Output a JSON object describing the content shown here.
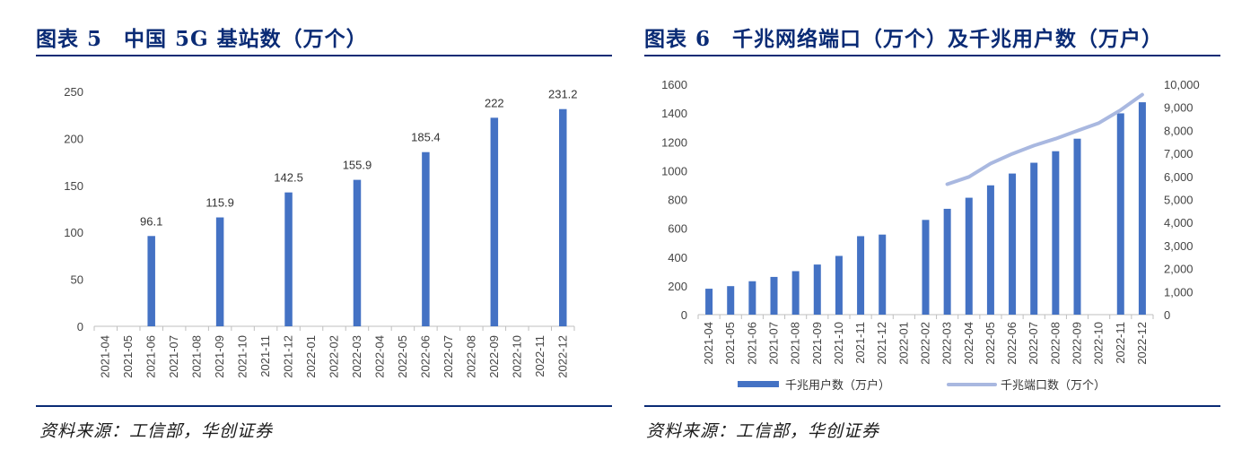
{
  "left": {
    "title": "图表 5　中国 5G 基站数（万个）",
    "source": "资料来源：工信部，华创证券",
    "chart_data": {
      "type": "bar",
      "title": "中国 5G 基站数（万个）",
      "categories": [
        "2021-04",
        "2021-05",
        "2021-06",
        "2021-07",
        "2021-08",
        "2021-09",
        "2021-10",
        "2021-11",
        "2021-12",
        "2022-01",
        "2022-02",
        "2022-03",
        "2022-04",
        "2022-05",
        "2022-06",
        "2022-07",
        "2022-08",
        "2022-09",
        "2022-10",
        "2022-11",
        "2022-12"
      ],
      "values": [
        null,
        null,
        96.1,
        null,
        null,
        115.9,
        null,
        null,
        142.5,
        null,
        null,
        155.9,
        null,
        null,
        185.4,
        null,
        null,
        222,
        null,
        null,
        231.2
      ],
      "data_labels": [
        "",
        "",
        "96.1",
        "",
        "",
        "115.9",
        "",
        "",
        "142.5",
        "",
        "",
        "155.9",
        "",
        "",
        "185.4",
        "",
        "",
        "222",
        "",
        "",
        "231.2"
      ],
      "ylim": [
        0,
        250
      ],
      "yticks": [
        "0",
        "50",
        "100",
        "150",
        "200",
        "250"
      ],
      "color": "#4472c4",
      "grid": false
    }
  },
  "right": {
    "title": "图表 6　千兆网络端口（万个）及千兆用户数（万户）",
    "source": "资料来源：工信部，华创证券",
    "chart_data": {
      "type": "bar",
      "title": "千兆网络端口（万个）及千兆用户数（万户）",
      "categories": [
        "2021-04",
        "2021-05",
        "2021-06",
        "2021-07",
        "2021-08",
        "2021-09",
        "2021-10",
        "2021-11",
        "2021-12",
        "2022-01",
        "2022-02",
        "2022-03",
        "2022-04",
        "2022-05",
        "2022-06",
        "2022-07",
        "2022-08",
        "2022-09",
        "2022-10",
        "2022-11",
        "2022-12"
      ],
      "series": [
        {
          "name": "千兆用户数（万户）",
          "type": "bar",
          "axis": "left",
          "color": "#4472c4",
          "values": [
            180,
            198,
            232,
            262,
            302,
            348,
            408,
            545,
            556,
            null,
            658,
            735,
            812,
            898,
            980,
            1055,
            1135,
            1222,
            null,
            1398,
            1475
          ]
        },
        {
          "name": "千兆端口数（万个）",
          "type": "line",
          "axis": "right",
          "color": "#a9b8e0",
          "values": [
            null,
            null,
            null,
            null,
            null,
            null,
            null,
            null,
            null,
            null,
            null,
            5660,
            5980,
            6560,
            6980,
            7340,
            7640,
            7980,
            8320,
            8880,
            9550
          ]
        }
      ],
      "ylim_left": [
        0,
        1600
      ],
      "yticks_left": [
        "0",
        "200",
        "400",
        "600",
        "800",
        "1000",
        "1200",
        "1400",
        "1600"
      ],
      "ylim_right": [
        0,
        10000
      ],
      "yticks_right": [
        "0",
        "1,000",
        "2,000",
        "3,000",
        "4,000",
        "5,000",
        "6,000",
        "7,000",
        "8,000",
        "9,000",
        "10,000"
      ],
      "legend": "bottom",
      "grid": false
    }
  }
}
